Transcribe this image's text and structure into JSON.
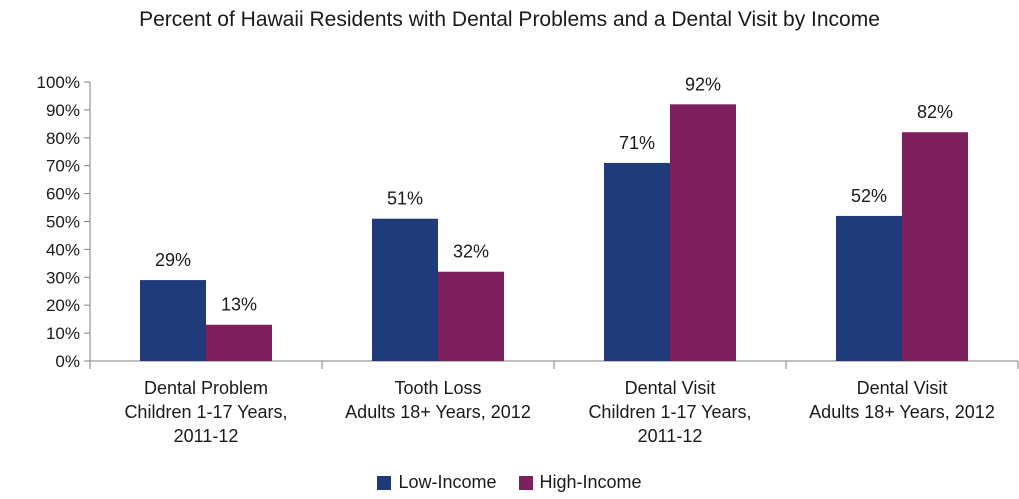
{
  "chart_data": {
    "type": "bar",
    "title": "Percent of Hawaii Residents with Dental Problems and a Dental Visit by Income",
    "categories": [
      [
        "Dental Problem",
        "Children 1-17 Years,",
        "2011-12"
      ],
      [
        "Tooth Loss",
        "Adults 18+ Years, 2012"
      ],
      [
        "Dental Visit",
        "Children 1-17 Years,",
        "2011-12"
      ],
      [
        "Dental Visit",
        "Adults 18+ Years, 2012"
      ]
    ],
    "series": [
      {
        "name": "Low-Income",
        "values": [
          29,
          51,
          71,
          52
        ],
        "labels": [
          "29%",
          "51%",
          "71%",
          "52%"
        ],
        "color": "#1f3b7a"
      },
      {
        "name": "High-Income",
        "values": [
          13,
          32,
          92,
          82
        ],
        "labels": [
          "13%",
          "32%",
          "92%",
          "82%"
        ],
        "color": "#7e1f5e"
      }
    ],
    "ylim": [
      0,
      100
    ],
    "yticks": [
      "0%",
      "10%",
      "20%",
      "30%",
      "40%",
      "50%",
      "60%",
      "70%",
      "80%",
      "90%",
      "100%"
    ],
    "grid": false,
    "legend_position": "bottom"
  }
}
